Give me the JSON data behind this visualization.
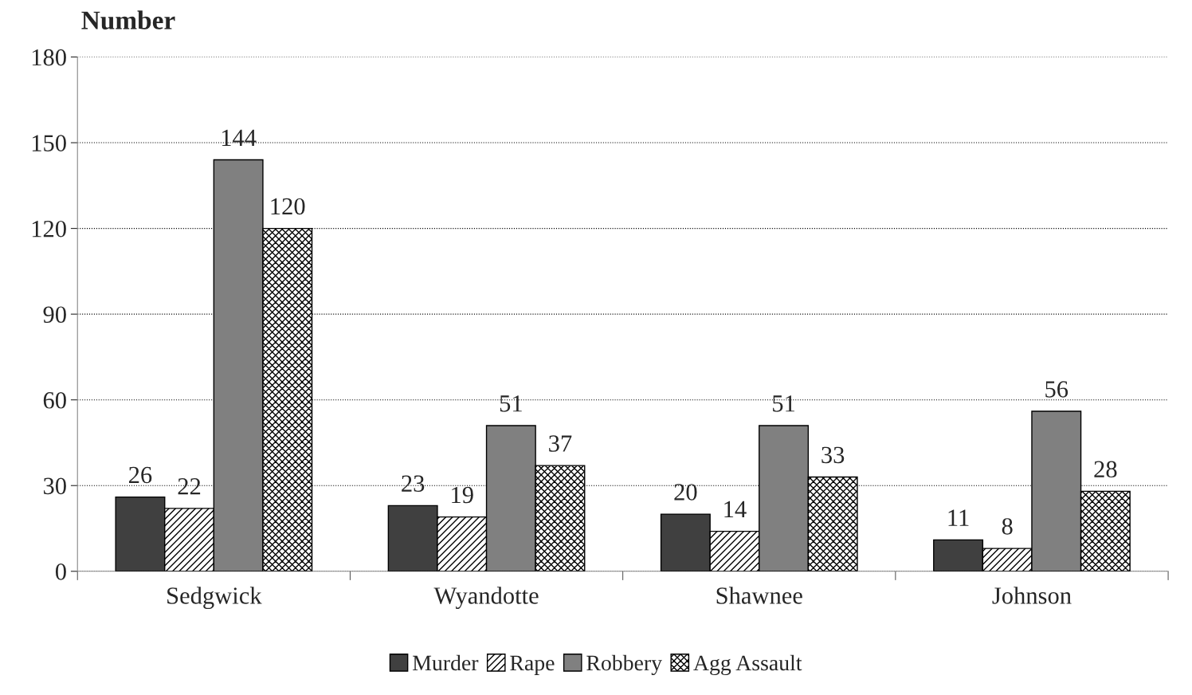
{
  "chart_data": {
    "type": "bar",
    "ylabel": "Number",
    "categories": [
      "Sedgwick",
      "Wyandotte",
      "Shawnee",
      "Johnson"
    ],
    "series": [
      {
        "name": "Murder",
        "color": "#404040",
        "values": [
          26,
          23,
          20,
          11
        ]
      },
      {
        "name": "Rape",
        "color": "#000000",
        "values": [
          22,
          19,
          14,
          8
        ]
      },
      {
        "name": "Robbery",
        "color": "#808080",
        "values": [
          144,
          51,
          51,
          56
        ]
      },
      {
        "name": "Agg Assault",
        "color": "#000000",
        "values": [
          120,
          37,
          33,
          28
        ]
      }
    ],
    "ylim": [
      0,
      180
    ],
    "yticks": [
      0,
      30,
      60,
      90,
      120,
      150,
      180
    ],
    "grid": "y",
    "legend": "bottom",
    "data_labels": true
  }
}
